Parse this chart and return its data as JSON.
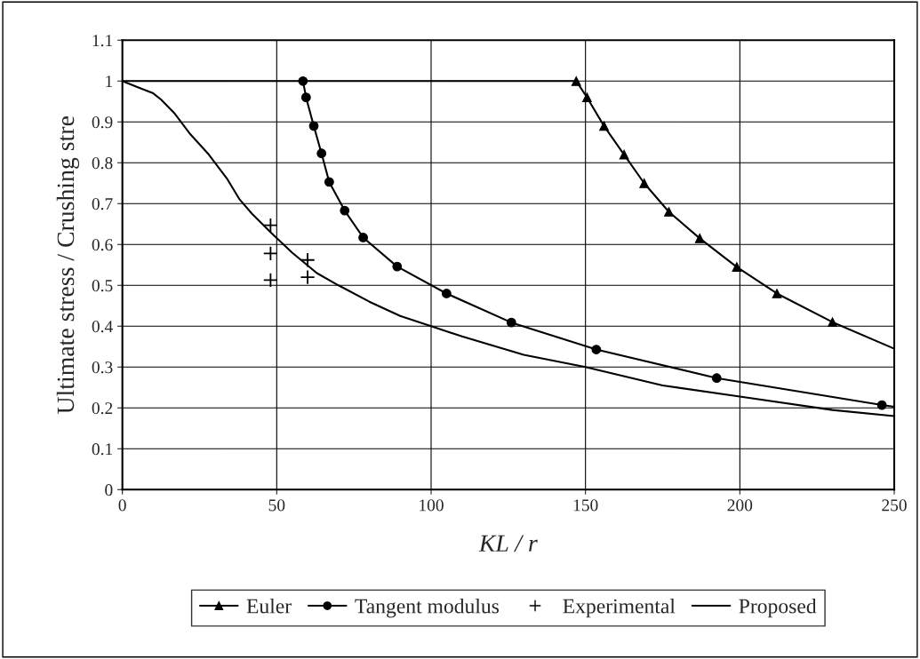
{
  "chart_data": {
    "type": "line",
    "xlabel": "KL / r",
    "ylabel": "Ultimate stress / Crushing stre",
    "xlim": [
      0,
      250
    ],
    "xticks": [
      0,
      50,
      100,
      150,
      200,
      250
    ],
    "ylim": [
      0,
      1.1
    ],
    "yticks": [
      0,
      0.1,
      0.2,
      0.3,
      0.4,
      0.5,
      0.6,
      0.7,
      0.8,
      0.9,
      1,
      1.1
    ],
    "grid": true,
    "legend": "bottom",
    "series": [
      {
        "name": "Euler",
        "color": "#000000",
        "marker": "triangle",
        "x": [
          147,
          150.5,
          156,
          162.5,
          169,
          177,
          187,
          199,
          212,
          230
        ],
        "values": [
          1,
          0.96,
          0.89,
          0.82,
          0.75,
          0.68,
          0.615,
          0.545,
          0.48,
          0.41
        ]
      },
      {
        "name": "Tangent modulus",
        "color": "#000000",
        "marker": "circle",
        "x": [
          58.5,
          59.5,
          62,
          64.5,
          67,
          72,
          78,
          89,
          105,
          126,
          153.5,
          192.5,
          246
        ],
        "values": [
          1,
          0.96,
          0.89,
          0.823,
          0.753,
          0.683,
          0.617,
          0.546,
          0.48,
          0.409,
          0.343,
          0.273,
          0.207
        ]
      },
      {
        "name": "Experimental",
        "color": "#000000",
        "type": "scatter",
        "marker": "cross",
        "x": [
          48,
          48,
          48,
          60,
          60
        ],
        "values": [
          0.647,
          0.578,
          0.513,
          0.562,
          0.52
        ]
      },
      {
        "name": "Proposed",
        "color": "#000000",
        "marker": "none",
        "x": [
          0,
          5,
          10,
          12.5,
          17,
          22,
          28,
          34,
          38,
          42,
          48,
          55,
          63,
          70,
          80,
          90,
          100,
          110,
          130,
          150,
          175,
          200,
          230,
          250
        ],
        "values": [
          1,
          0.985,
          0.97,
          0.955,
          0.92,
          0.87,
          0.82,
          0.76,
          0.71,
          0.675,
          0.63,
          0.58,
          0.53,
          0.5,
          0.46,
          0.425,
          0.4,
          0.375,
          0.33,
          0.3,
          0.255,
          0.228,
          0.195,
          0.18
        ]
      },
      {
        "color": "#000000",
        "marker": "none",
        "x": [
          0,
          147
        ],
        "values": [
          1,
          1
        ]
      },
      {
        "color": "#000000",
        "marker": "none",
        "x": [
          230,
          250
        ],
        "values": [
          0.41,
          0.345
        ]
      },
      {
        "color": "#000000",
        "marker": "none",
        "x": [
          246,
          250
        ],
        "values": [
          0.207,
          0.203
        ]
      }
    ]
  }
}
